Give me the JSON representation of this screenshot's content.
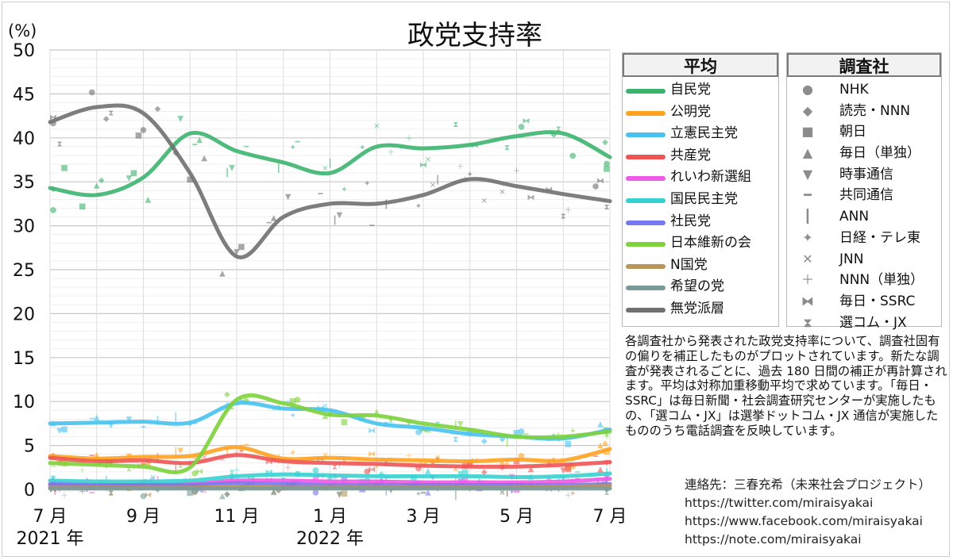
{
  "chart_data": {
    "type": "line",
    "title": "政党支持率",
    "ylabel": "(%)",
    "ylim": [
      0,
      50
    ],
    "yticks": [
      "0",
      "5",
      "10",
      "15",
      "20",
      "25",
      "30",
      "35",
      "40",
      "45",
      "50"
    ],
    "x": [
      "2021-07",
      "2021-08",
      "2021-09",
      "2021-10",
      "2021-11",
      "2021-12",
      "2022-01",
      "2022-02",
      "2022-03",
      "2022-04",
      "2022-05",
      "2022-06",
      "2022-07"
    ],
    "xticks": [
      "7 月",
      "9 月",
      "11 月",
      "1 月",
      "3 月",
      "5 月",
      "7 月"
    ],
    "year_labels": [
      "2021 年",
      "2022 年"
    ],
    "series": [
      {
        "name": "自民党",
        "color": "#3cb46e",
        "values": [
          34.3,
          33.5,
          35.5,
          40.5,
          38.5,
          37.2,
          36.0,
          39.0,
          38.8,
          39.2,
          40.2,
          40.5,
          37.8
        ]
      },
      {
        "name": "公明党",
        "color": "#ffa21f",
        "values": [
          3.8,
          3.5,
          3.7,
          3.8,
          4.8,
          3.5,
          3.6,
          3.4,
          3.3,
          3.2,
          3.4,
          3.3,
          4.6
        ]
      },
      {
        "name": "立憲民主党",
        "color": "#47c2f0",
        "values": [
          7.5,
          7.6,
          7.7,
          7.6,
          9.8,
          9.2,
          9.0,
          7.5,
          7.0,
          6.3,
          6.0,
          5.8,
          6.8
        ]
      },
      {
        "name": "共産党",
        "color": "#ee5454",
        "values": [
          3.6,
          3.2,
          3.3,
          3.0,
          3.9,
          3.2,
          3.0,
          2.9,
          2.7,
          2.6,
          2.6,
          2.8,
          3.1
        ]
      },
      {
        "name": "れいわ新選組",
        "color": "#ee5ae6",
        "values": [
          0.5,
          0.4,
          0.5,
          0.6,
          1.0,
          1.0,
          0.9,
          0.9,
          0.8,
          0.8,
          0.8,
          0.9,
          1.2
        ]
      },
      {
        "name": "国民民主党",
        "color": "#37d0d0",
        "values": [
          1.0,
          0.9,
          0.9,
          1.0,
          1.5,
          1.7,
          1.6,
          1.5,
          1.5,
          1.5,
          1.4,
          1.5,
          1.8
        ]
      },
      {
        "name": "社民党",
        "color": "#7878ee",
        "values": [
          0.6,
          0.5,
          0.5,
          0.5,
          0.7,
          0.6,
          0.5,
          0.5,
          0.5,
          0.5,
          0.5,
          0.5,
          0.6
        ]
      },
      {
        "name": "日本維新の会",
        "color": "#7ed23c",
        "values": [
          3.0,
          2.8,
          2.6,
          2.5,
          10.2,
          9.8,
          8.5,
          8.4,
          7.5,
          6.8,
          6.0,
          6.0,
          6.6
        ]
      },
      {
        "name": "N国党",
        "color": "#b8955a",
        "values": [
          0.2,
          0.2,
          0.2,
          0.2,
          0.3,
          0.2,
          0.2,
          0.2,
          0.2,
          0.2,
          0.2,
          0.3,
          0.4
        ]
      },
      {
        "name": "希望の党",
        "color": "#7a9a9a",
        "values": [
          0.1,
          0.1,
          0.1,
          0.1,
          0.1,
          0.1,
          0.1,
          0.1,
          0.1,
          0.1,
          0.1,
          0.1,
          0.1
        ]
      },
      {
        "name": "無党派層",
        "color": "#707070",
        "values": [
          41.8,
          43.5,
          42.8,
          36.0,
          26.5,
          31.0,
          32.5,
          32.5,
          33.5,
          35.3,
          34.5,
          33.6,
          32.8
        ]
      }
    ],
    "legend_average_title": "平均",
    "legend_survey_title": "調査社",
    "surveys": [
      {
        "name": "NHK",
        "symbol": "●"
      },
      {
        "name": "読売・NNN",
        "symbol": "◆"
      },
      {
        "name": "朝日",
        "symbol": "■"
      },
      {
        "name": "毎日（単独）",
        "symbol": "▲"
      },
      {
        "name": "時事通信",
        "symbol": "▼"
      },
      {
        "name": "共同通信",
        "symbol": "━"
      },
      {
        "name": "ANN",
        "symbol": "┃"
      },
      {
        "name": "日経・テレ東",
        "symbol": "✦"
      },
      {
        "name": "JNN",
        "symbol": "✕"
      },
      {
        "name": "NNN（単独）",
        "symbol": "＋"
      },
      {
        "name": "毎日・SSRC",
        "symbol": "⧓"
      },
      {
        "name": "選コム・JX",
        "symbol": "⧗"
      }
    ]
  },
  "note": "各調査社から発表された政党支持率について、調査社固有の偏りを補正したものがプロットされています。新たな調査が発表されるごとに、過去 180 日間の補正が再計算されます。平均は対称加重移動平均で求めています。「毎日・SSRC」は毎日新聞・社会調査研究センターが実施したもの、「選コム・JX」は選挙ドットコム・JX 通信が実施したもののうち電話調査を反映しています。",
  "contact": {
    "label": "連絡先：三春充希（未来社会プロジェクト）",
    "links": [
      "https://twitter.com/miraisyakai",
      "https://www.facebook.com/miraisyakai",
      "https://note.com/miraisyakai"
    ]
  }
}
